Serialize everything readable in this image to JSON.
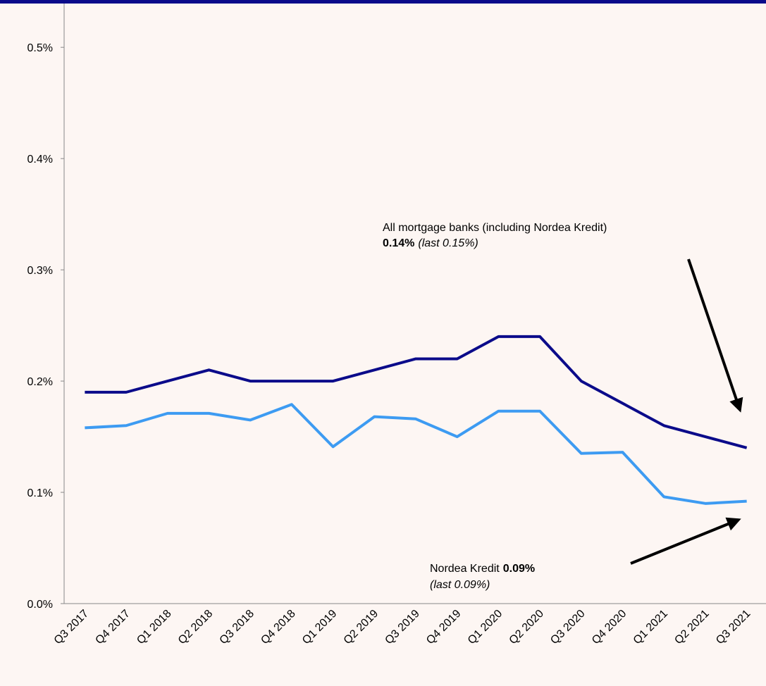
{
  "chart_data": {
    "type": "line",
    "categories": [
      "Q3 2017",
      "Q4 2017",
      "Q1 2018",
      "Q2 2018",
      "Q3 2018",
      "Q4 2018",
      "Q1 2019",
      "Q2 2019",
      "Q3 2019",
      "Q4 2019",
      "Q1 2020",
      "Q2 2020",
      "Q3 2020",
      "Q4 2020",
      "Q1 2021",
      "Q2 2021",
      "Q3 2021"
    ],
    "series": [
      {
        "color": "#0b0b8a",
        "values": [
          0.19,
          0.19,
          0.2,
          0.21,
          0.2,
          0.2,
          0.2,
          0.21,
          0.22,
          0.22,
          0.24,
          0.24,
          0.2,
          0.18,
          0.16,
          0.15,
          0.14
        ]
      },
      {
        "color": "#3d9bf2",
        "values": [
          0.158,
          0.16,
          0.171,
          0.171,
          0.165,
          0.179,
          0.141,
          0.168,
          0.166,
          0.15,
          0.173,
          0.173,
          0.135,
          0.136,
          0.096,
          0.09,
          0.092
        ]
      }
    ],
    "ylim": [
      0,
      0.54
    ],
    "yticks": [
      {
        "value": 0,
        "label": "0.0%"
      },
      {
        "value": 0.1,
        "label": "0.1%"
      },
      {
        "value": 0.2,
        "label": "0.2%"
      },
      {
        "value": 0.3,
        "label": "0.3%"
      },
      {
        "value": 0.4,
        "label": "0.4%"
      },
      {
        "value": 0.5,
        "label": "0.5%"
      }
    ],
    "annotations": [
      {
        "label": "All mortgage banks (including Nordea Kredit)",
        "value": "0.14%",
        "last": "(last 0.15%)"
      },
      {
        "label": "Nordea Kredit",
        "value": "0.09%",
        "last": "(last 0.09%)"
      }
    ]
  }
}
